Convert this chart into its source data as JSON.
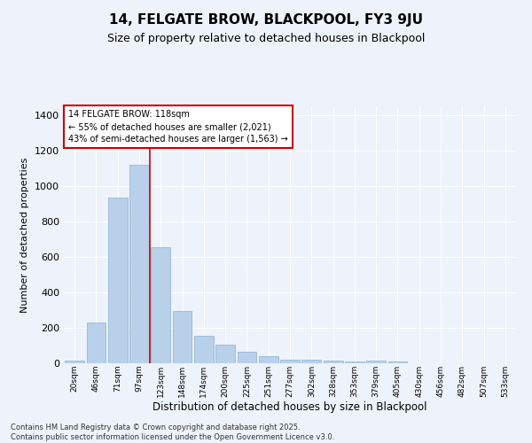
{
  "title": "14, FELGATE BROW, BLACKPOOL, FY3 9JU",
  "subtitle": "Size of property relative to detached houses in Blackpool",
  "xlabel": "Distribution of detached houses by size in Blackpool",
  "ylabel": "Number of detached properties",
  "categories": [
    "20sqm",
    "46sqm",
    "71sqm",
    "97sqm",
    "123sqm",
    "148sqm",
    "174sqm",
    "200sqm",
    "225sqm",
    "251sqm",
    "277sqm",
    "302sqm",
    "328sqm",
    "353sqm",
    "379sqm",
    "405sqm",
    "430sqm",
    "456sqm",
    "482sqm",
    "507sqm",
    "533sqm"
  ],
  "values": [
    15,
    230,
    935,
    1120,
    655,
    295,
    157,
    105,
    65,
    40,
    22,
    18,
    15,
    12,
    15,
    8,
    0,
    0,
    0,
    0,
    0
  ],
  "bar_color": "#b8d0ea",
  "bar_edge_color": "#8ab0d0",
  "vline_index": 4,
  "annotation_title": "14 FELGATE BROW: 118sqm",
  "annotation_line1": "← 55% of detached houses are smaller (2,021)",
  "annotation_line2": "43% of semi-detached houses are larger (1,563) →",
  "annotation_box_color": "#ffffff",
  "annotation_box_edge": "#cc0000",
  "vline_color": "#cc0000",
  "ylim": [
    0,
    1450
  ],
  "yticks": [
    0,
    200,
    400,
    600,
    800,
    1000,
    1200,
    1400
  ],
  "footer_line1": "Contains HM Land Registry data © Crown copyright and database right 2025.",
  "footer_line2": "Contains public sector information licensed under the Open Government Licence v3.0.",
  "background_color": "#eef2fb",
  "grid_color": "#ffffff",
  "title_fontsize": 11,
  "subtitle_fontsize": 9
}
